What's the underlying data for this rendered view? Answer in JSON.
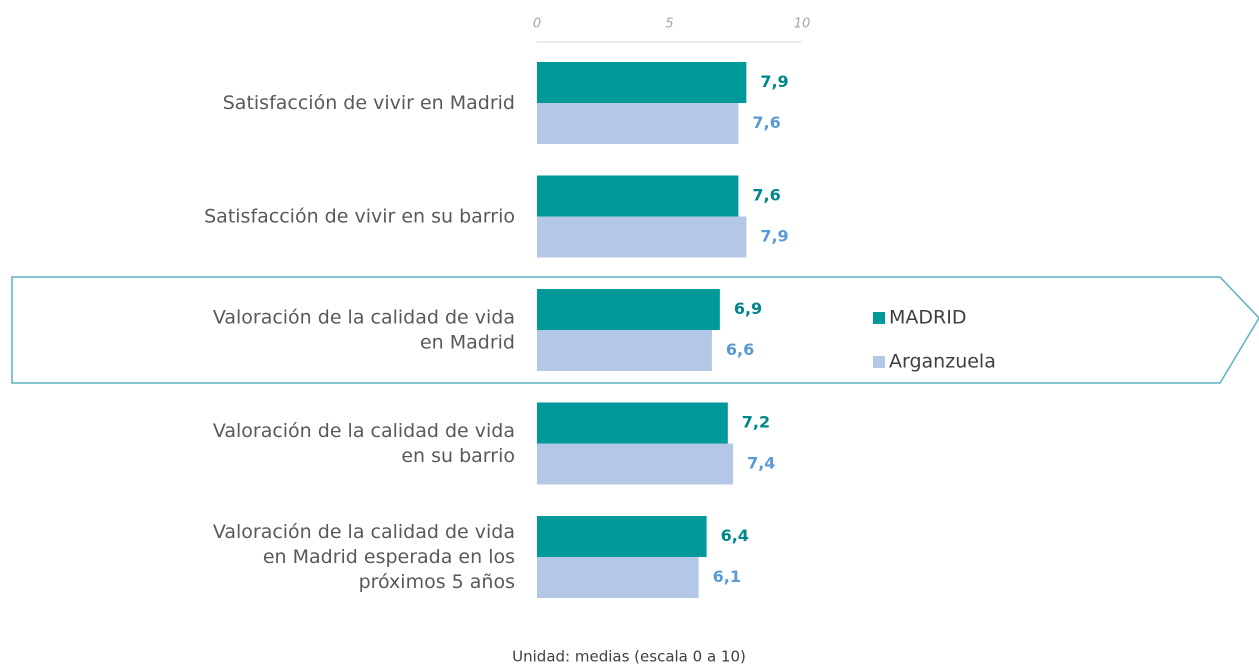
{
  "chart_data": {
    "type": "bar",
    "orientation": "horizontal",
    "categories": [
      "Satisfacción de vivir en Madrid",
      "Satisfacción de vivir en su barrio",
      "Valoración de la calidad de vida\nen Madrid",
      "Valoración de la calidad de vida\nen su barrio",
      "Valoración de la calidad de vida\nen Madrid esperada en los\npróximos 5 años"
    ],
    "series": [
      {
        "name": "MADRID",
        "color": "#009999",
        "label_color": "#00878a",
        "values": [
          7.9,
          7.6,
          6.9,
          7.2,
          6.4
        ],
        "value_labels": [
          "7,9",
          "7,6",
          "6,9",
          "7,2",
          "6,4"
        ]
      },
      {
        "name": "Arganzuela",
        "color": "#b4c7e7",
        "label_color": "#5b9bd5",
        "values": [
          7.6,
          7.9,
          6.6,
          7.4,
          6.1
        ],
        "value_labels": [
          "7,6",
          "7,9",
          "6,6",
          "7,4",
          "6,1"
        ]
      }
    ],
    "xlim": [
      0,
      10
    ],
    "xticks": [
      0,
      5,
      10
    ],
    "note": "Unidad: medias (escala 0 a 10)"
  }
}
